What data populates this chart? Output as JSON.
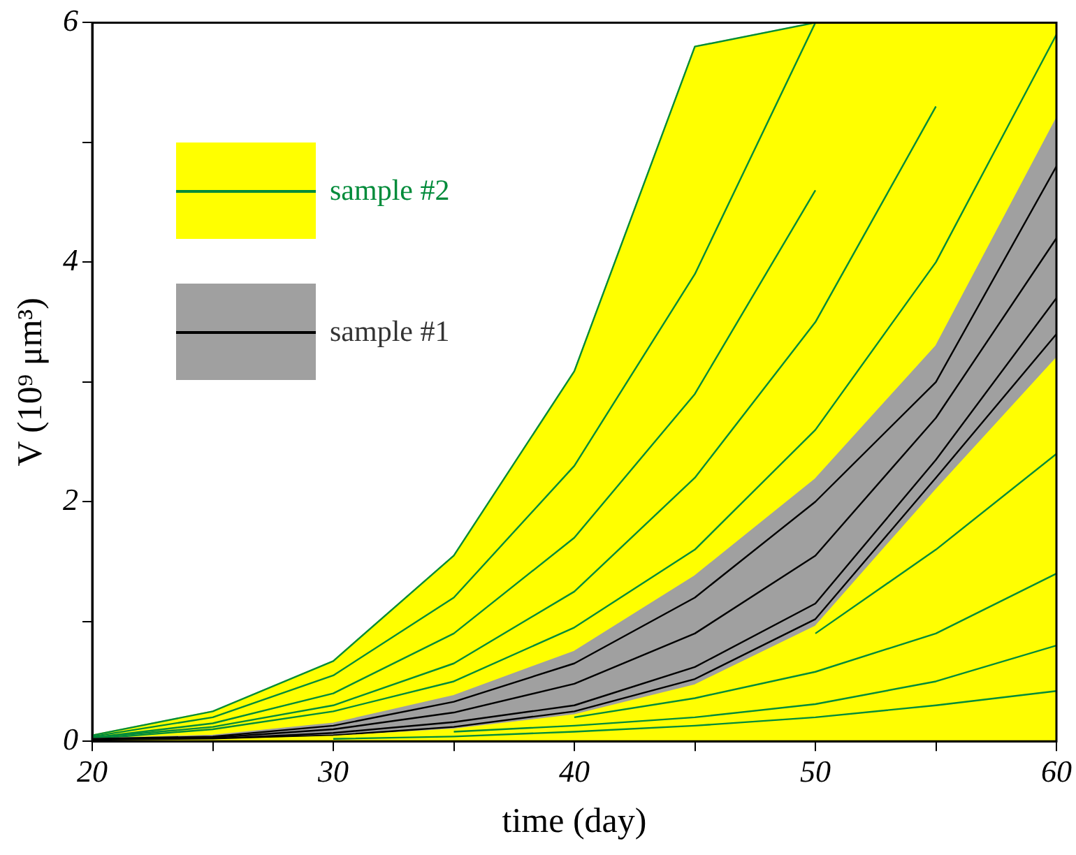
{
  "chart_data": {
    "type": "line",
    "xlabel": "time (day)",
    "ylabel": "V (10⁹ μm³)",
    "x": [
      20,
      25,
      30,
      35,
      40,
      45,
      50,
      55,
      60
    ],
    "xlim": [
      20,
      60
    ],
    "xticks": [
      20,
      {
        "value": 25,
        "label": null
      },
      30,
      {
        "value": 35,
        "label": null
      },
      40,
      {
        "value": 45,
        "label": null
      },
      50,
      {
        "value": 55,
        "label": null
      },
      60
    ],
    "ylim": [
      0,
      6
    ],
    "yticks": [
      0,
      {
        "value": 1,
        "label": null
      },
      2,
      {
        "value": 3,
        "label": null
      },
      4,
      {
        "value": 5,
        "label": null
      },
      6
    ],
    "grid": false,
    "legend": "top left",
    "marker": "none",
    "line_style": "solid",
    "series": [
      {
        "type": "area",
        "color": "#ffff00",
        "values": [
          0.05,
          0.25,
          0.67,
          1.55,
          3.09,
          5.8,
          6,
          6,
          6
        ]
      },
      {
        "color": "#008b3a",
        "values": [
          0.05,
          0.25,
          0.67,
          1.55,
          3.09,
          5.8,
          6,
          null,
          null
        ]
      },
      {
        "name": "sample #2",
        "color": "#008b3a",
        "values": [
          0.04,
          0.2,
          0.55,
          1.2,
          2.3,
          3.9,
          6,
          null,
          null
        ]
      },
      {
        "color": "#008b3a",
        "values": [
          0.03,
          0.15,
          0.4,
          0.9,
          1.7,
          2.9,
          4.6,
          null,
          null
        ]
      },
      {
        "color": "#008b3a",
        "values": [
          0.03,
          0.12,
          0.3,
          0.65,
          1.25,
          2.2,
          3.5,
          5.3,
          null
        ]
      },
      {
        "color": "#008b3a",
        "values": [
          0.02,
          0.1,
          0.25,
          0.5,
          0.95,
          1.6,
          2.6,
          4.0,
          5.9
        ]
      },
      {
        "type": "area",
        "color": "#a0a0a0",
        "values": [
          0.02,
          0.05,
          0.15,
          0.38,
          0.75,
          1.38,
          2.19,
          3.3,
          5.2
        ]
      },
      {
        "color": "#000000",
        "values": [
          0.02,
          0.04,
          0.13,
          0.33,
          0.65,
          1.2,
          2.0,
          3.0,
          4.8
        ]
      },
      {
        "name": "sample #1",
        "color": "#000000",
        "values": [
          0.01,
          0.03,
          0.1,
          0.24,
          0.48,
          0.9,
          1.55,
          2.7,
          4.2
        ]
      },
      {
        "color": "#000000",
        "values": [
          0.01,
          0.02,
          0.07,
          0.16,
          0.3,
          0.62,
          1.15,
          2.35,
          3.7
        ]
      },
      {
        "color": "#000000",
        "values": [
          0.01,
          0.02,
          0.05,
          0.12,
          0.25,
          0.52,
          1.02,
          2.2,
          3.4
        ]
      },
      {
        "type": "area",
        "color": "#fffe02",
        "values": [
          0,
          0.01,
          0.04,
          0.1,
          0.22,
          0.47,
          0.96,
          2.1,
          3.2
        ]
      },
      {
        "color": "#008b3a",
        "values": [
          null,
          null,
          null,
          null,
          null,
          null,
          0.9,
          1.6,
          2.4
        ]
      },
      {
        "color": "#008b3a",
        "values": [
          null,
          null,
          null,
          null,
          0.2,
          0.36,
          0.58,
          0.9,
          1.4
        ]
      },
      {
        "color": "#008b3a",
        "values": [
          null,
          null,
          null,
          0.08,
          0.13,
          0.2,
          0.31,
          0.5,
          0.8
        ]
      },
      {
        "color": "#008b3a",
        "values": [
          null,
          null,
          0.02,
          0.04,
          0.08,
          0.13,
          0.2,
          0.3,
          0.42
        ]
      }
    ]
  }
}
